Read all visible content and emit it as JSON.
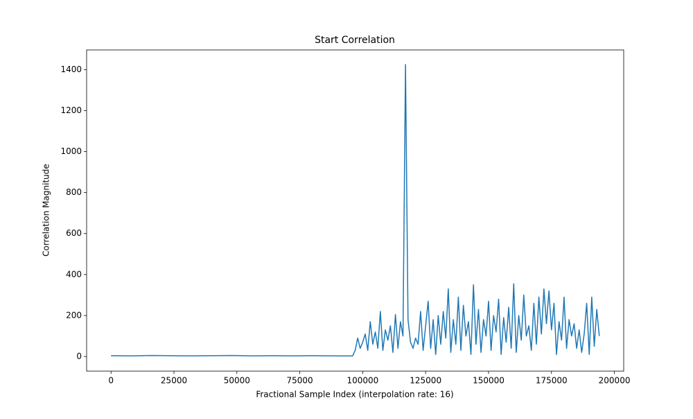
{
  "chart_data": {
    "type": "line",
    "title": "Start Correlation",
    "x_label": "Fractional Sample Index (interpolation rate: 16)",
    "y_label": "Correlation Magnitude",
    "color": "#1f77b4",
    "xlim": [
      -9700,
      203700
    ],
    "ylim": [
      -71.3,
      1496.3
    ],
    "xticks": [
      0,
      25000,
      50000,
      75000,
      100000,
      125000,
      150000,
      175000,
      200000
    ],
    "yticks": [
      0,
      200,
      400,
      600,
      800,
      1000,
      1200,
      1400
    ],
    "x": [
      0,
      8000,
      16000,
      24000,
      32000,
      40000,
      48000,
      56000,
      64000,
      72000,
      80000,
      88000,
      96000,
      97000,
      98000,
      99000,
      100000,
      101000,
      102000,
      103000,
      104000,
      105000,
      106000,
      107000,
      108000,
      109000,
      110000,
      111000,
      112000,
      113000,
      114000,
      115000,
      116000,
      117000,
      118000,
      119000,
      120000,
      121000,
      122000,
      123000,
      124000,
      125000,
      126000,
      127000,
      128000,
      129000,
      130000,
      131000,
      132000,
      133000,
      134000,
      135000,
      136000,
      137000,
      138000,
      139000,
      140000,
      141000,
      142000,
      143000,
      144000,
      145000,
      146000,
      147000,
      148000,
      149000,
      150000,
      151000,
      152000,
      153000,
      154000,
      155000,
      156000,
      157000,
      158000,
      159000,
      160000,
      161000,
      162000,
      163000,
      164000,
      165000,
      166000,
      167000,
      168000,
      169000,
      170000,
      171000,
      172000,
      173000,
      174000,
      175000,
      176000,
      177000,
      178000,
      179000,
      180000,
      181000,
      182000,
      183000,
      184000,
      185000,
      186000,
      187000,
      188000,
      189000,
      190000,
      191000,
      192000,
      193000,
      194000
    ],
    "values": [
      4,
      3,
      5,
      4,
      3,
      4,
      5,
      3,
      4,
      3,
      4,
      3,
      3,
      30,
      90,
      40,
      70,
      110,
      30,
      170,
      60,
      120,
      40,
      220,
      30,
      130,
      80,
      150,
      20,
      205,
      40,
      170,
      100,
      1425,
      180,
      70,
      40,
      90,
      60,
      220,
      30,
      150,
      270,
      40,
      180,
      10,
      200,
      60,
      220,
      90,
      330,
      20,
      180,
      60,
      290,
      30,
      250,
      100,
      170,
      10,
      350,
      60,
      230,
      20,
      180,
      100,
      270,
      30,
      200,
      120,
      280,
      10,
      190,
      70,
      240,
      40,
      355,
      20,
      200,
      80,
      300,
      100,
      150,
      30,
      260,
      60,
      290,
      110,
      330,
      160,
      320,
      130,
      260,
      10,
      170,
      80,
      290,
      40,
      180,
      100,
      160,
      40,
      130,
      20,
      110,
      260,
      10,
      290,
      50,
      230,
      100
    ]
  }
}
